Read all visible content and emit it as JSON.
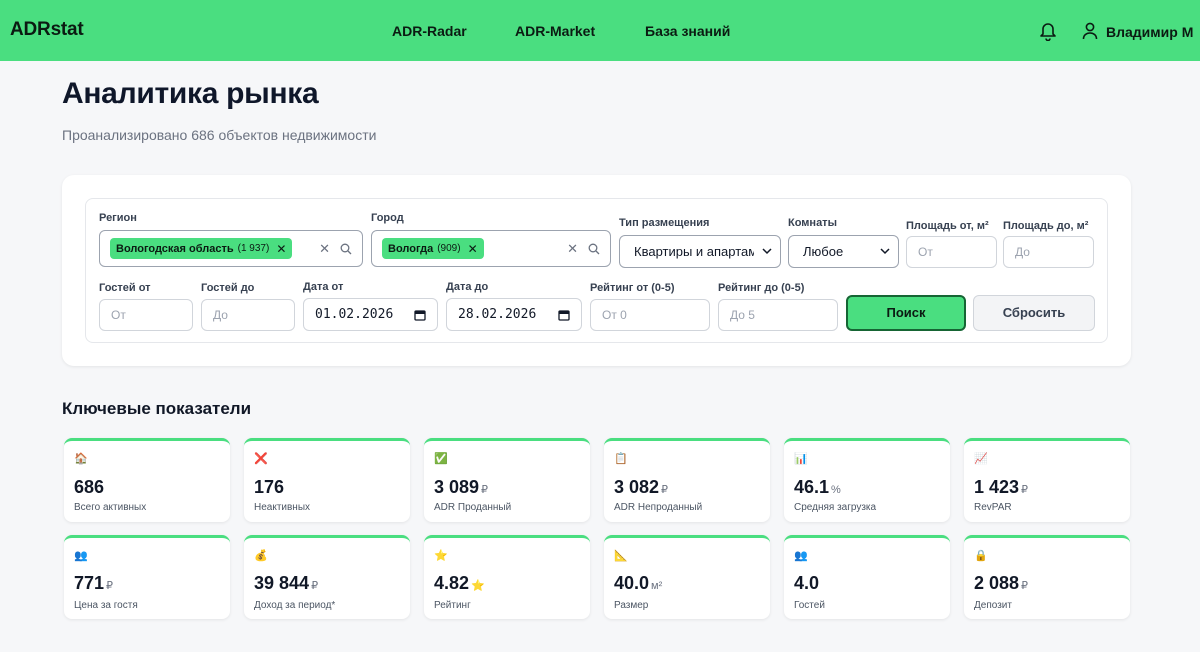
{
  "header": {
    "logo": "ADRstat",
    "nav": [
      "ADR-Radar",
      "ADR-Market",
      "База знаний"
    ],
    "user_name": "Владимир М"
  },
  "page": {
    "title": "Аналитика рынка",
    "subtitle": "Проанализировано 686 объектов недвижимости"
  },
  "filters": {
    "region_label": "Регион",
    "region_chip": "Вологодская область",
    "region_chip_count": "(1 937)",
    "city_label": "Город",
    "city_chip": "Вологда",
    "city_chip_count": "(909)",
    "placement_label": "Тип размещения",
    "placement_value": "Квартиры и апартаменты",
    "rooms_label": "Комнаты",
    "rooms_value": "Любое",
    "area_from_label": "Площадь от, м²",
    "area_from_placeholder": "От",
    "area_to_label": "Площадь до, м²",
    "area_to_placeholder": "До",
    "guests_from_label": "Гостей от",
    "guests_from_placeholder": "От",
    "guests_to_label": "Гостей до",
    "guests_to_placeholder": "До",
    "date_from_label": "Дата от",
    "date_from_value": "01.02.2026",
    "date_to_label": "Дата до",
    "date_to_value": "28.02.2026",
    "rating_from_label": "Рейтинг от (0-5)",
    "rating_from_placeholder": "От 0",
    "rating_to_label": "Рейтинг до (0-5)",
    "rating_to_placeholder": "До 5",
    "search_button": "Поиск",
    "reset_button": "Сбросить"
  },
  "kpi_section_title": "Ключевые показатели",
  "kpis": [
    {
      "icon": "house-icon",
      "glyph": "🏠",
      "value": "686",
      "unit": "",
      "label": "Всего активных"
    },
    {
      "icon": "cross-icon",
      "glyph": "❌",
      "value": "176",
      "unit": "",
      "label": "Неактивных"
    },
    {
      "icon": "check-icon",
      "glyph": "✅",
      "value": "3 089",
      "unit": "₽",
      "label": "ADR Проданный"
    },
    {
      "icon": "notepad-icon",
      "glyph": "📋",
      "value": "3 082",
      "unit": "₽",
      "label": "ADR Непроданный"
    },
    {
      "icon": "bar-chart-icon",
      "glyph": "📊",
      "value": "46.1",
      "unit": "%",
      "label": "Средняя загрузка"
    },
    {
      "icon": "trend-chart-icon",
      "glyph": "📈",
      "value": "1 423",
      "unit": "₽",
      "label": "RevPAR"
    },
    {
      "icon": "people-icon",
      "glyph": "👥",
      "value": "771",
      "unit": "₽",
      "label": "Цена за гостя"
    },
    {
      "icon": "money-bag-icon",
      "glyph": "💰",
      "value": "39 844",
      "unit": "₽",
      "label": "Доход за период*"
    },
    {
      "icon": "star-icon",
      "glyph": "⭐",
      "value": "4.82",
      "unit": "⭐",
      "label": "Рейтинг"
    },
    {
      "icon": "ruler-icon",
      "glyph": "📐",
      "value": "40.0",
      "unit": "м²",
      "label": "Размер"
    },
    {
      "icon": "guests-icon",
      "glyph": "👥",
      "value": "4.0",
      "unit": "",
      "label": "Гостей"
    },
    {
      "icon": "lock-icon",
      "glyph": "🔒",
      "value": "2 088",
      "unit": "₽",
      "label": "Депозит"
    }
  ]
}
